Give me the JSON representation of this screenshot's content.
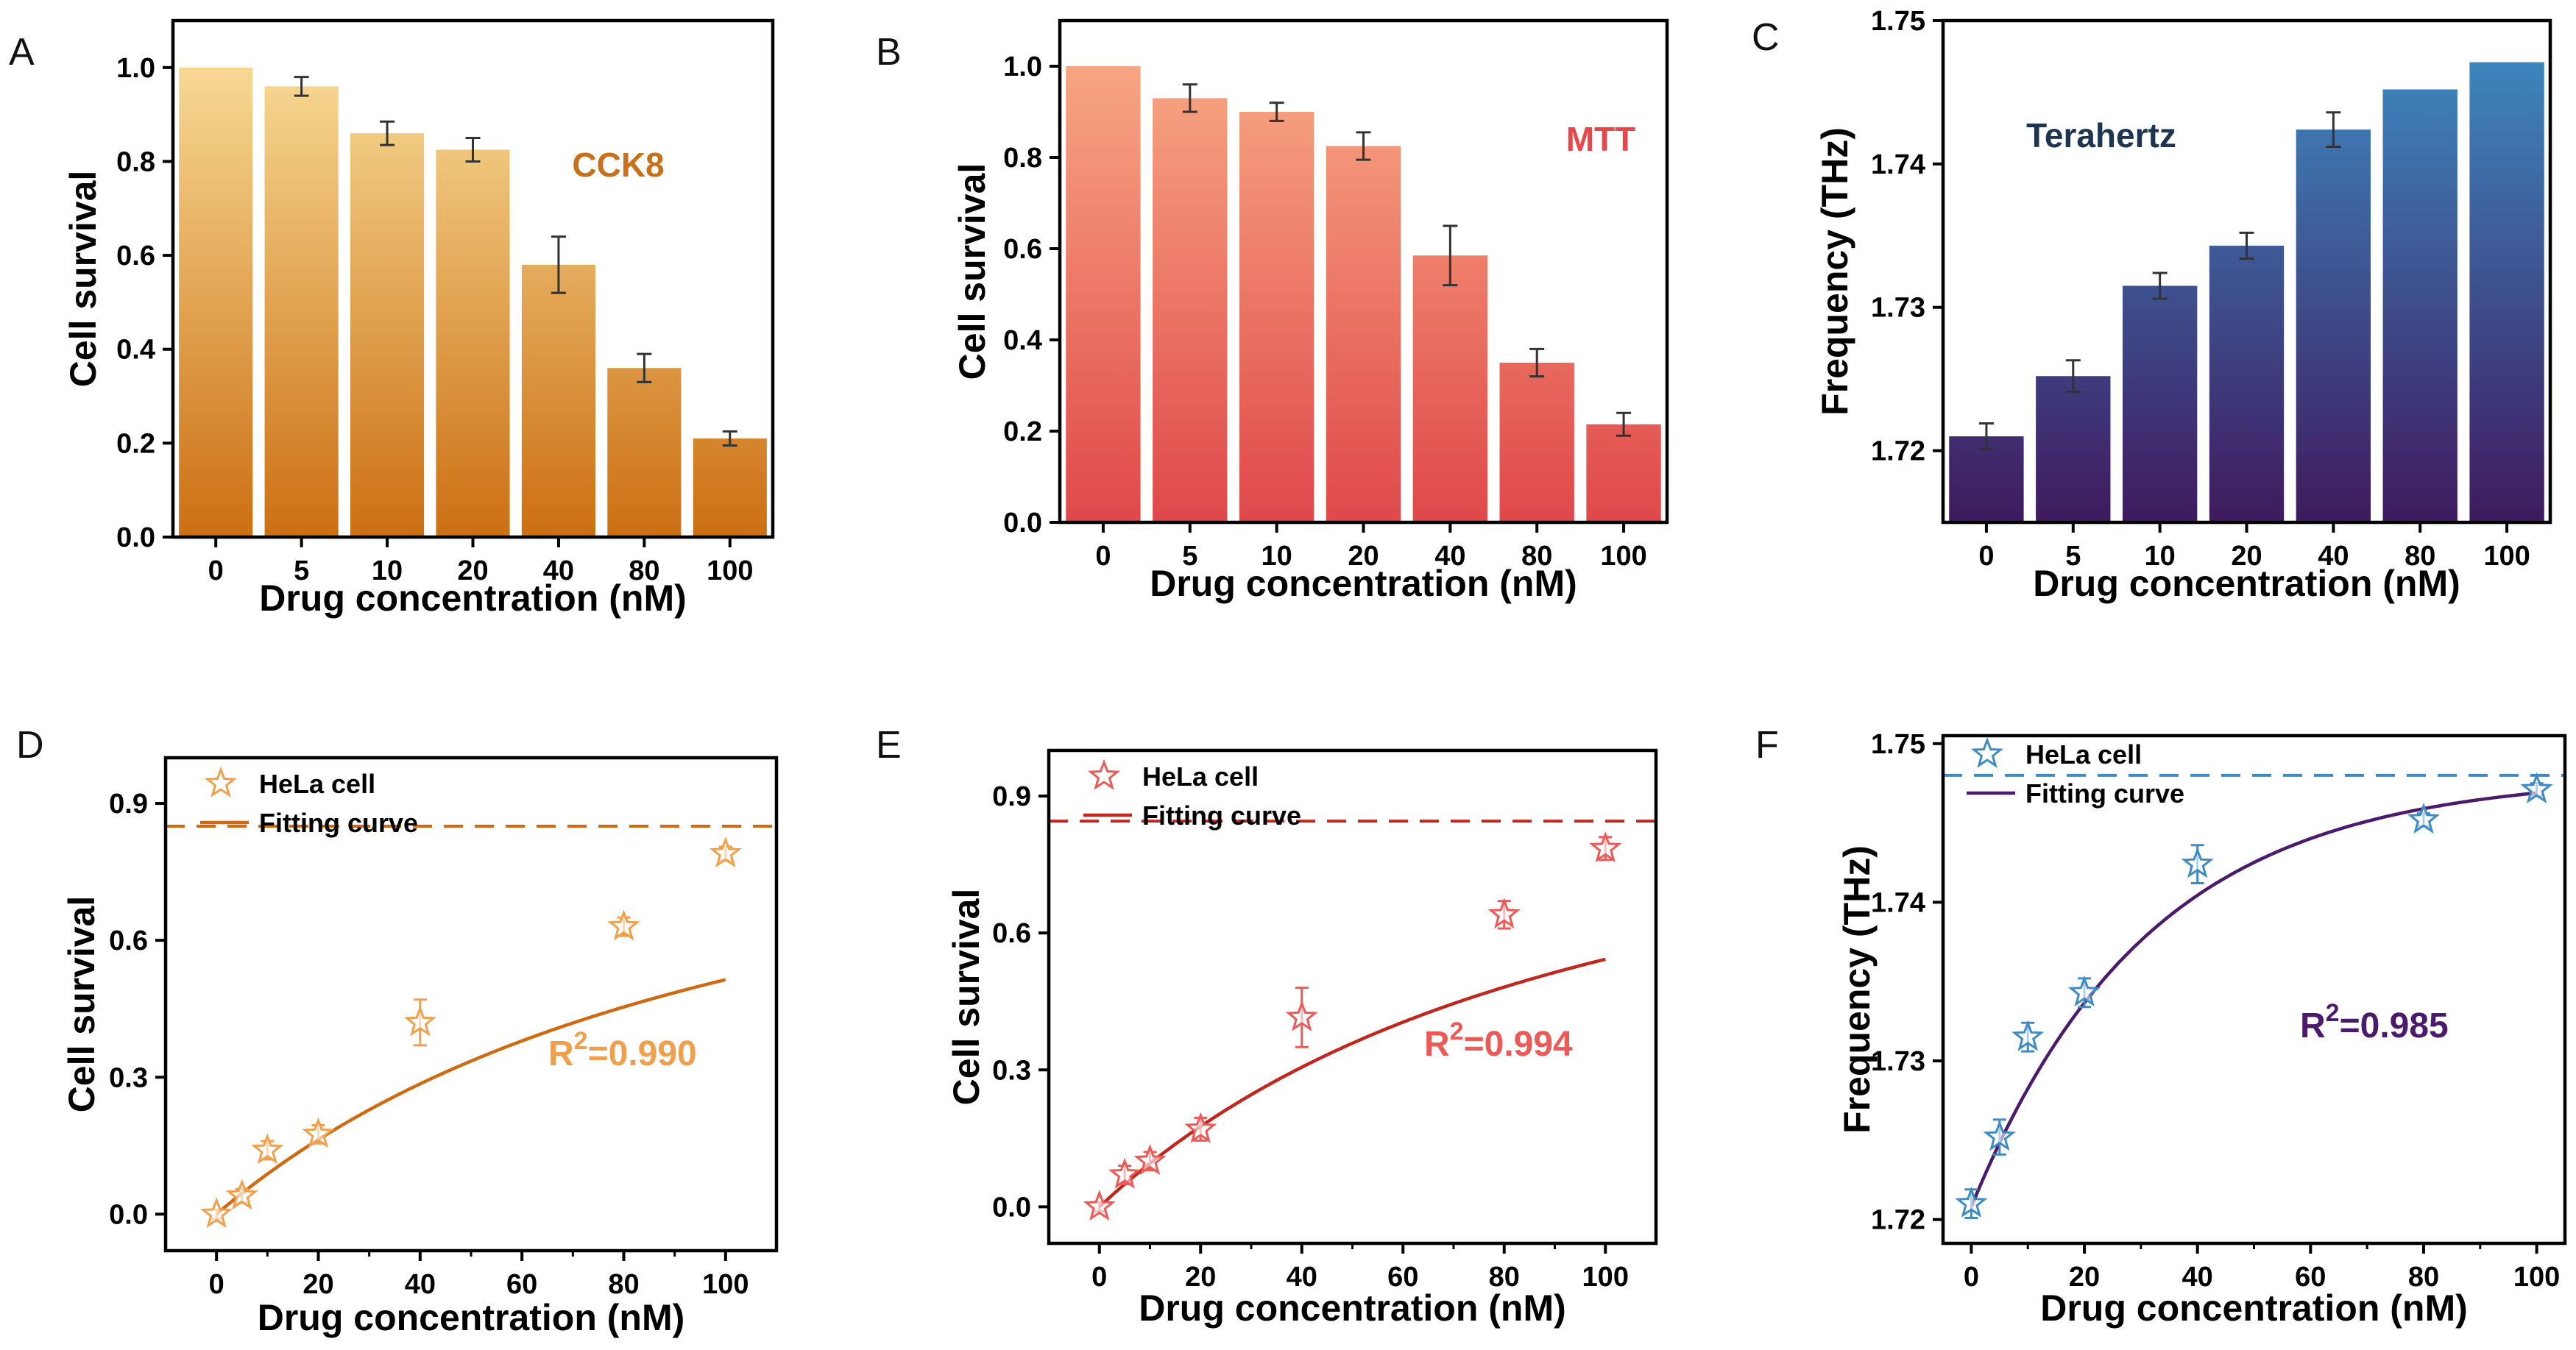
{
  "chart_data": [
    {
      "id": "A",
      "panel_label": "A",
      "type": "bar",
      "categories": [
        "0",
        "5",
        "10",
        "20",
        "40",
        "80",
        "100"
      ],
      "values": [
        1.0,
        0.96,
        0.86,
        0.825,
        0.58,
        0.36,
        0.21
      ],
      "errors": [
        0,
        0.02,
        0.025,
        0.025,
        0.06,
        0.03,
        0.015
      ],
      "xlabel": "Drug concentration (nM)",
      "ylabel": "Cell survival",
      "ylim": [
        0,
        1.1
      ],
      "yticks": [
        "0.0",
        "0.2",
        "0.4",
        "0.6",
        "0.8",
        "1.0"
      ],
      "ytick_values": [
        0,
        0.2,
        0.4,
        0.6,
        0.8,
        1.0
      ],
      "annotation": "CCK8",
      "annotation_color": "#C8701A",
      "gradient_top": "#FBE3A0",
      "gradient_bottom": "#CC6F12"
    },
    {
      "id": "B",
      "panel_label": "B",
      "type": "bar",
      "categories": [
        "0",
        "5",
        "10",
        "20",
        "40",
        "80",
        "100"
      ],
      "values": [
        1.0,
        0.93,
        0.9,
        0.825,
        0.585,
        0.35,
        0.215
      ],
      "errors": [
        0,
        0.03,
        0.02,
        0.03,
        0.065,
        0.03,
        0.025
      ],
      "xlabel": "Drug concentration (nM)",
      "ylabel": "Cell survival",
      "ylim": [
        0,
        1.1
      ],
      "yticks": [
        "0.0",
        "0.2",
        "0.4",
        "0.6",
        "0.8",
        "1.0"
      ],
      "ytick_values": [
        0,
        0.2,
        0.4,
        0.6,
        0.8,
        1.0
      ],
      "annotation": "MTT",
      "annotation_color": "#E8474A",
      "gradient_top": "#F9AF88",
      "gradient_bottom": "#E0484A"
    },
    {
      "id": "C",
      "panel_label": "C",
      "type": "bar",
      "categories": [
        "0",
        "5",
        "10",
        "20",
        "40",
        "80",
        "100"
      ],
      "values": [
        1.721,
        1.7252,
        1.7315,
        1.7343,
        1.7424,
        1.7452,
        1.7471
      ],
      "errors": [
        0.0009,
        0.0011,
        0.0009,
        0.0009,
        0.0012,
        0,
        0
      ],
      "xlabel": "Drug concentration (nM)",
      "ylabel": "Frequency (THz)",
      "ylim": [
        1.715,
        1.75
      ],
      "yticks": [
        "1.72",
        "1.73",
        "1.74",
        "1.75"
      ],
      "ytick_values": [
        1.72,
        1.73,
        1.74,
        1.75
      ],
      "annotation": "Terahertz",
      "annotation_color": "#1E3550",
      "gradient_top": "#3D8FC6",
      "gradient_bottom": "#3F1A5E"
    },
    {
      "id": "D",
      "panel_label": "D",
      "type": "scatter",
      "x": [
        0,
        5,
        10,
        20,
        40,
        80,
        100
      ],
      "y": [
        0.0,
        0.04,
        0.14,
        0.175,
        0.42,
        0.63,
        0.79
      ],
      "errors": [
        0.01,
        0.015,
        0.02,
        0.02,
        0.05,
        0.02,
        0.015
      ],
      "fit": {
        "type": "saturation",
        "ymax": 0.85,
        "scale": 1.9,
        "b": 0.0059
      },
      "asymptote": 0.85,
      "xlabel": "Drug concentration (nM)",
      "ylabel": "Cell survival",
      "xlim": [
        -10,
        110
      ],
      "ylim": [
        -0.08,
        1.0
      ],
      "xticks": [
        "0",
        "20",
        "40",
        "60",
        "80",
        "100"
      ],
      "xtick_values": [
        0,
        20,
        40,
        60,
        80,
        100
      ],
      "yticks": [
        "0.0",
        "0.3",
        "0.6",
        "0.9"
      ],
      "ytick_values": [
        0,
        0.3,
        0.6,
        0.9
      ],
      "legend": [
        "HeLa cell",
        "Fitting curve"
      ],
      "r2_prefix": "R",
      "r2_sup": "2",
      "r2_value": "=0.990",
      "color": "#F0A04C",
      "line_color": "#CF6A12"
    },
    {
      "id": "E",
      "panel_label": "E",
      "type": "scatter",
      "x": [
        0,
        5,
        10,
        20,
        40,
        80,
        100
      ],
      "y": [
        0.0,
        0.07,
        0.1,
        0.17,
        0.415,
        0.64,
        0.785
      ],
      "errors": [
        0.01,
        0.02,
        0.02,
        0.025,
        0.065,
        0.03,
        0.025
      ],
      "fit": {
        "type": "saturation",
        "ymax": 0.845,
        "scale": 1.7,
        "b": 0.0072
      },
      "asymptote": 0.845,
      "xlabel": "Drug concentration (nM)",
      "ylabel": "Cell survival",
      "xlim": [
        -10,
        110
      ],
      "ylim": [
        -0.08,
        1.0
      ],
      "xticks": [
        "0",
        "20",
        "40",
        "60",
        "80",
        "100"
      ],
      "xtick_values": [
        0,
        20,
        40,
        60,
        80,
        100
      ],
      "yticks": [
        "0.0",
        "0.3",
        "0.6",
        "0.9"
      ],
      "ytick_values": [
        0,
        0.3,
        0.6,
        0.9
      ],
      "legend": [
        "HeLa cell",
        "Fitting curve"
      ],
      "r2_prefix": "R",
      "r2_sup": "2",
      "r2_value": "=0.994",
      "color": "#EC5A57",
      "line_color": "#C0271E"
    },
    {
      "id": "F",
      "panel_label": "F",
      "type": "scatter",
      "x": [
        0,
        5,
        10,
        20,
        40,
        80,
        100
      ],
      "y": [
        1.721,
        1.7252,
        1.7315,
        1.7343,
        1.7424,
        1.7452,
        1.7471
      ],
      "errors": [
        0.0009,
        0.0011,
        0.0009,
        0.0009,
        0.0012,
        0.0004,
        0.0004
      ],
      "fit": {
        "type": "exp",
        "y0": 1.7208,
        "a": 0.0272,
        "k": 0.032
      },
      "asymptote": 1.748,
      "xlabel": "Drug concentration (nM)",
      "ylabel": "Frequency (THz)",
      "xlim": [
        -5,
        105
      ],
      "ylim": [
        1.7185,
        1.7505
      ],
      "xticks": [
        "0",
        "20",
        "40",
        "60",
        "80",
        "100"
      ],
      "xtick_values": [
        0,
        20,
        40,
        60,
        80,
        100
      ],
      "yticks": [
        "1.72",
        "1.73",
        "1.74",
        "1.75"
      ],
      "ytick_values": [
        1.72,
        1.73,
        1.74,
        1.75
      ],
      "legend": [
        "HeLa cell",
        "Fitting curve"
      ],
      "r2_prefix": "R",
      "r2_sup": "2",
      "r2_value": "=0.985",
      "color": "#3E8BC4",
      "line_color": "#4B1A6A",
      "r2_color": "#4B1A6A"
    }
  ]
}
